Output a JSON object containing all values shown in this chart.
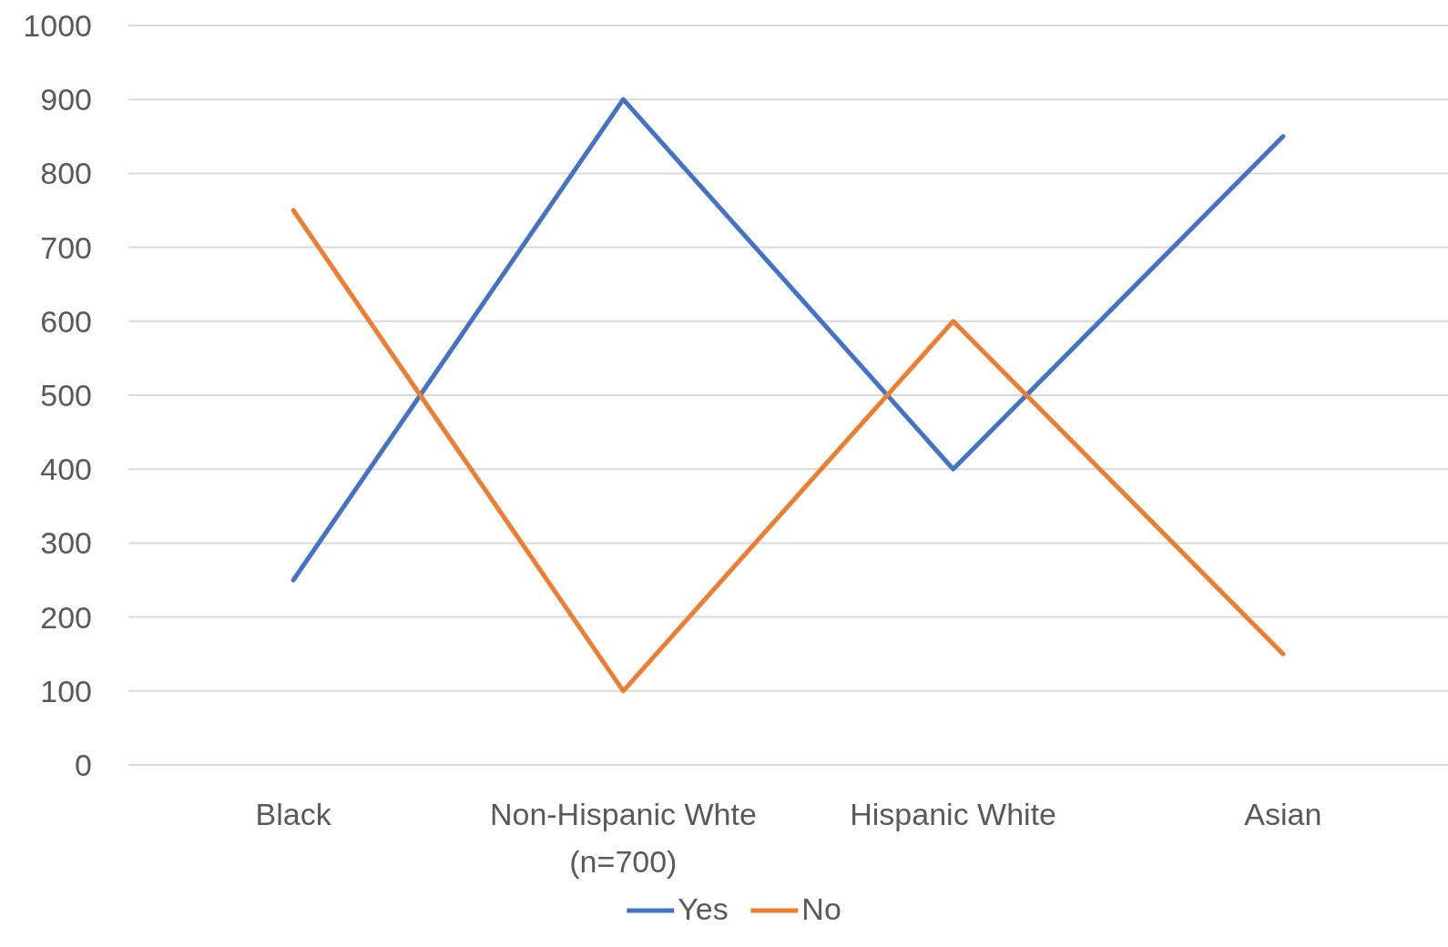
{
  "chart_data": {
    "type": "line",
    "categories": [
      "Black",
      "Non-Hispanic Whte (n=700)",
      "Hispanic White",
      "Asian"
    ],
    "series": [
      {
        "name": "Yes",
        "color": "#4472c4",
        "values": [
          250,
          900,
          400,
          850
        ]
      },
      {
        "name": "No",
        "color": "#ed7d31",
        "values": [
          750,
          100,
          600,
          150
        ]
      }
    ],
    "ylim": [
      0,
      1000
    ],
    "yticks": [
      0,
      100,
      200,
      300,
      400,
      500,
      600,
      700,
      800,
      900,
      1000
    ],
    "grid": "y",
    "legend": "bottom",
    "marker": "none",
    "line_style": "solid"
  }
}
